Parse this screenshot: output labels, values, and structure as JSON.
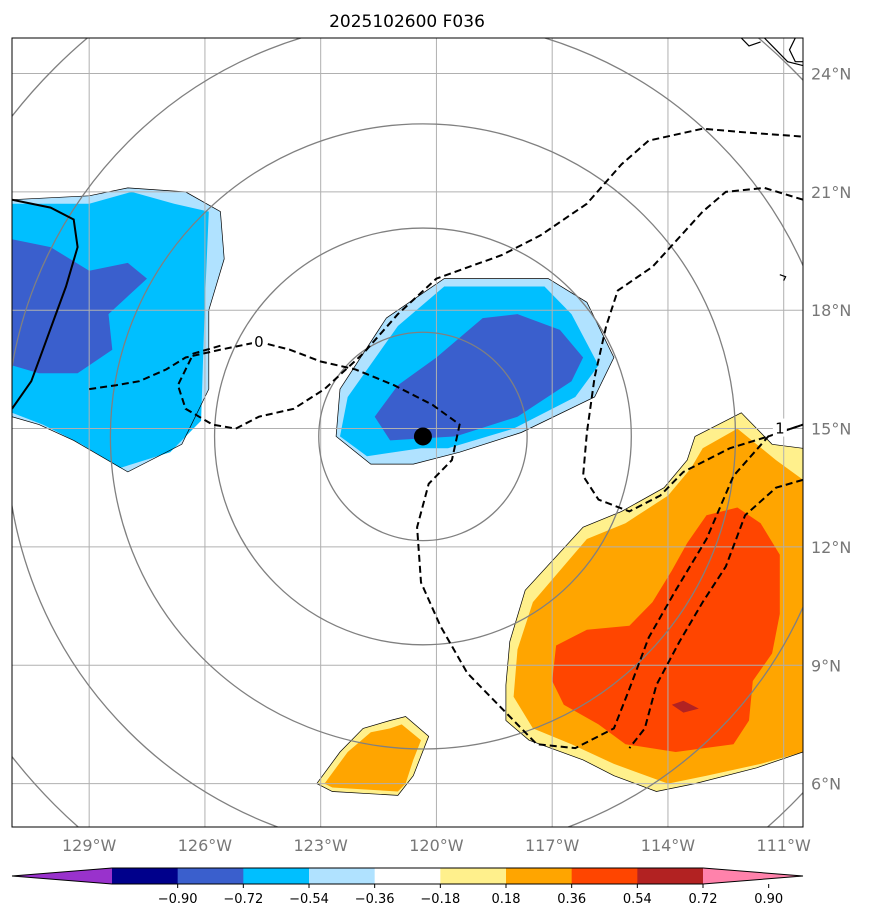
{
  "chart_data": {
    "type": "contour_map",
    "title": "2025102600 F036",
    "projection": "lat-lon",
    "xlim": [
      -131,
      -110.5
    ],
    "ylim": [
      4.9,
      24.9
    ],
    "grid": true,
    "lon_ticks": [
      {
        "value": -129,
        "label": "129°W"
      },
      {
        "value": -126,
        "label": "126°W"
      },
      {
        "value": -123,
        "label": "123°W"
      },
      {
        "value": -120,
        "label": "120°W"
      },
      {
        "value": -117,
        "label": "117°W"
      },
      {
        "value": -114,
        "label": "114°W"
      },
      {
        "value": -111,
        "label": "111°W"
      }
    ],
    "lat_ticks": [
      {
        "value": 6,
        "label": "6°N"
      },
      {
        "value": 9,
        "label": "9°N"
      },
      {
        "value": 12,
        "label": "12°N"
      },
      {
        "value": 15,
        "label": "15°N"
      },
      {
        "value": 18,
        "label": "18°N"
      },
      {
        "value": 21,
        "label": "21°N"
      },
      {
        "value": 24,
        "label": "24°N"
      }
    ],
    "center": {
      "lon": -120.35,
      "lat": 14.8
    },
    "range_rings_deg": [
      2.7,
      5.4,
      8.1,
      10.8,
      13.5
    ],
    "colorbar": {
      "orientation": "horizontal",
      "extend": "both",
      "levels": [
        -0.9,
        -0.72,
        -0.54,
        -0.36,
        -0.18,
        0.18,
        0.36,
        0.54,
        0.72,
        0.9
      ],
      "tick_labels": [
        "−0.90",
        "−0.72",
        "−0.54",
        "−0.36",
        "−0.18",
        "0.18",
        "0.36",
        "0.54",
        "0.72",
        "0.90"
      ],
      "colors": [
        "#9932cc",
        "#00008b",
        "#3a5fcd",
        "#00bfff",
        "#b0e2ff",
        "#ffffff",
        "#fff08c",
        "#ffa500",
        "#ff4500",
        "#b22222",
        "#ff82ab"
      ]
    },
    "contour_labels": [
      {
        "text": "0",
        "lon": -124.6,
        "lat": 17.2
      },
      {
        "text": "1",
        "lon": -111.1,
        "lat": 15.0
      }
    ],
    "filled_regions": [
      {
        "level": -0.18,
        "color": "#b0e2ff",
        "points": [
          [
            -131,
            20.8
          ],
          [
            -129,
            20.9
          ],
          [
            -128,
            21.1
          ],
          [
            -126.5,
            21.0
          ],
          [
            -125.6,
            20.5
          ],
          [
            -125.5,
            19.3
          ],
          [
            -125.9,
            18.0
          ],
          [
            -125.9,
            16.0
          ],
          [
            -126.6,
            14.6
          ],
          [
            -128.0,
            13.9
          ],
          [
            -129.4,
            14.7
          ],
          [
            -130.3,
            15.1
          ],
          [
            -131,
            15.3
          ]
        ]
      },
      {
        "level": -0.36,
        "color": "#00bfff",
        "points": [
          [
            -131,
            20.7
          ],
          [
            -129,
            20.7
          ],
          [
            -127.9,
            21.0
          ],
          [
            -126.8,
            20.7
          ],
          [
            -125.9,
            20.5
          ],
          [
            -126.0,
            18.2
          ],
          [
            -126.1,
            15.2
          ],
          [
            -126.9,
            14.4
          ],
          [
            -128.2,
            14.0
          ],
          [
            -129.2,
            14.6
          ],
          [
            -130.2,
            15.1
          ],
          [
            -131,
            15.4
          ]
        ]
      },
      {
        "level": -0.54,
        "color": "#3a5fcd",
        "points": [
          [
            -131,
            19.8
          ],
          [
            -130,
            19.6
          ],
          [
            -129,
            19.0
          ],
          [
            -128,
            19.2
          ],
          [
            -127.5,
            18.8
          ],
          [
            -128.5,
            17.9
          ],
          [
            -128.4,
            17.0
          ],
          [
            -129.3,
            16.4
          ],
          [
            -130.3,
            16.4
          ],
          [
            -131,
            16.6
          ]
        ]
      },
      {
        "level": -0.18,
        "color": "#b0e2ff",
        "points": [
          [
            -121.3,
            17.8
          ],
          [
            -119.8,
            18.8
          ],
          [
            -117.1,
            18.8
          ],
          [
            -116.1,
            18.2
          ],
          [
            -115.4,
            16.8
          ],
          [
            -115.9,
            15.8
          ],
          [
            -117.8,
            14.9
          ],
          [
            -119.4,
            14.4
          ],
          [
            -120.6,
            14.1
          ],
          [
            -121.7,
            14.1
          ],
          [
            -122.6,
            14.8
          ],
          [
            -122.5,
            16.0
          ]
        ]
      },
      {
        "level": -0.36,
        "color": "#00bfff",
        "points": [
          [
            -121.0,
            17.6
          ],
          [
            -119.8,
            18.6
          ],
          [
            -117.2,
            18.6
          ],
          [
            -116.5,
            17.9
          ],
          [
            -115.8,
            16.6
          ],
          [
            -116.4,
            15.8
          ],
          [
            -118.0,
            15.0
          ],
          [
            -119.7,
            14.5
          ],
          [
            -120.4,
            14.5
          ],
          [
            -121.8,
            14.3
          ],
          [
            -122.5,
            14.8
          ],
          [
            -122.3,
            15.8
          ]
        ]
      },
      {
        "level": -0.54,
        "color": "#3a5fcd",
        "points": [
          [
            -120.0,
            16.8
          ],
          [
            -118.8,
            17.8
          ],
          [
            -117.9,
            17.9
          ],
          [
            -116.8,
            17.5
          ],
          [
            -116.2,
            16.8
          ],
          [
            -116.5,
            16.2
          ],
          [
            -117.9,
            15.3
          ],
          [
            -119.5,
            14.8
          ],
          [
            -121.2,
            14.7
          ],
          [
            -121.6,
            15.3
          ],
          [
            -121.0,
            16.1
          ]
        ]
      },
      {
        "level": 0.18,
        "color": "#fff08c",
        "points": [
          [
            -113.3,
            14.8
          ],
          [
            -112.1,
            15.4
          ],
          [
            -111.3,
            14.6
          ],
          [
            -110.5,
            14.5
          ],
          [
            -110.5,
            6.8
          ],
          [
            -111.7,
            6.4
          ],
          [
            -113.3,
            6.0
          ],
          [
            -114.3,
            5.8
          ],
          [
            -115.4,
            6.2
          ],
          [
            -116.2,
            6.6
          ],
          [
            -117.6,
            7.1
          ],
          [
            -118.2,
            7.6
          ],
          [
            -118.2,
            8.5
          ],
          [
            -118.1,
            9.6
          ],
          [
            -117.7,
            10.9
          ],
          [
            -116.2,
            12.5
          ],
          [
            -115.2,
            12.9
          ],
          [
            -114.1,
            13.5
          ],
          [
            -113.5,
            14.2
          ]
        ]
      },
      {
        "level": 0.36,
        "color": "#ffa500",
        "points": [
          [
            -113.1,
            14.5
          ],
          [
            -112.2,
            15.0
          ],
          [
            -111.2,
            14.2
          ],
          [
            -110.5,
            13.7
          ],
          [
            -110.5,
            6.8
          ],
          [
            -111.6,
            6.5
          ],
          [
            -113.0,
            6.2
          ],
          [
            -114.0,
            6.0
          ],
          [
            -115.4,
            6.5
          ],
          [
            -116.5,
            7.0
          ],
          [
            -117.5,
            7.4
          ],
          [
            -118.0,
            8.2
          ],
          [
            -117.9,
            9.4
          ],
          [
            -117.5,
            10.6
          ],
          [
            -116.1,
            12.2
          ],
          [
            -115.1,
            12.6
          ],
          [
            -114.0,
            13.3
          ],
          [
            -113.4,
            14.0
          ]
        ]
      },
      {
        "level": 0.54,
        "color": "#ff4500",
        "points": [
          [
            -113.0,
            12.8
          ],
          [
            -112.2,
            13.0
          ],
          [
            -111.6,
            12.6
          ],
          [
            -111.1,
            11.8
          ],
          [
            -111.1,
            10.3
          ],
          [
            -111.3,
            9.3
          ],
          [
            -111.8,
            8.6
          ],
          [
            -111.9,
            7.6
          ],
          [
            -112.3,
            7.0
          ],
          [
            -113.8,
            6.8
          ],
          [
            -115.1,
            7.0
          ],
          [
            -115.8,
            7.5
          ],
          [
            -116.7,
            8.0
          ],
          [
            -117.0,
            8.6
          ],
          [
            -116.9,
            9.5
          ],
          [
            -116.1,
            9.9
          ],
          [
            -115.0,
            10.0
          ],
          [
            -114.4,
            10.6
          ],
          [
            -113.9,
            11.4
          ],
          [
            -113.5,
            12.1
          ]
        ]
      },
      {
        "level": 0.72,
        "color": "#b22222",
        "points": [
          [
            -113.9,
            8.0
          ],
          [
            -113.6,
            8.1
          ],
          [
            -113.2,
            7.9
          ],
          [
            -113.6,
            7.8
          ]
        ]
      },
      {
        "level": 0.18,
        "color": "#fff08c",
        "points": [
          [
            -123.1,
            6.0
          ],
          [
            -122.5,
            6.8
          ],
          [
            -121.9,
            7.4
          ],
          [
            -121.2,
            7.6
          ],
          [
            -120.8,
            7.7
          ],
          [
            -120.2,
            7.2
          ],
          [
            -120.4,
            6.7
          ],
          [
            -120.6,
            6.2
          ],
          [
            -121.0,
            5.7
          ],
          [
            -122.7,
            5.8
          ]
        ]
      },
      {
        "level": 0.36,
        "color": "#ffa500",
        "points": [
          [
            -122.9,
            6.0
          ],
          [
            -122.3,
            6.8
          ],
          [
            -121.7,
            7.3
          ],
          [
            -121.2,
            7.4
          ],
          [
            -120.9,
            7.5
          ],
          [
            -120.4,
            7.1
          ],
          [
            -120.6,
            6.6
          ],
          [
            -120.8,
            6.0
          ],
          [
            -121.0,
            5.8
          ],
          [
            -122.7,
            5.9
          ]
        ]
      }
    ],
    "contour_lines": [
      {
        "style": "solid",
        "points": [
          [
            -131,
            20.8
          ],
          [
            -130,
            20.6
          ],
          [
            -129.4,
            20.3
          ],
          [
            -129.3,
            19.6
          ],
          [
            -129.6,
            18.6
          ],
          [
            -129.9,
            17.8
          ],
          [
            -130.2,
            17.0
          ],
          [
            -130.5,
            16.2
          ],
          [
            -131,
            15.5
          ]
        ]
      },
      {
        "style": "dashed",
        "label": "0",
        "points": [
          [
            -129,
            16.0
          ],
          [
            -128.3,
            16.1
          ],
          [
            -127.7,
            16.2
          ],
          [
            -127.0,
            16.5
          ],
          [
            -126.5,
            16.8
          ],
          [
            -125.6,
            17.0
          ],
          [
            -124.6,
            17.2
          ],
          [
            -123.8,
            17.0
          ],
          [
            -123.0,
            16.7
          ],
          [
            -122.1,
            16.5
          ],
          [
            -121.1,
            16.1
          ],
          [
            -120.1,
            15.6
          ],
          [
            -119.4,
            15.1
          ],
          [
            -119.6,
            14.2
          ],
          [
            -120.2,
            13.6
          ],
          [
            -120.5,
            12.5
          ],
          [
            -120.4,
            11.1
          ],
          [
            -119.9,
            10.0
          ],
          [
            -119.2,
            8.8
          ],
          [
            -118.2,
            7.8
          ],
          [
            -117.4,
            7.0
          ],
          [
            -116.4,
            6.9
          ],
          [
            -115.4,
            7.4
          ],
          [
            -115.0,
            8.4
          ],
          [
            -114.5,
            9.7
          ],
          [
            -113.8,
            10.9
          ],
          [
            -113.0,
            12.2
          ],
          [
            -112.3,
            13.8
          ],
          [
            -111.4,
            14.8
          ],
          [
            -110.5,
            15.1
          ]
        ]
      },
      {
        "style": "dashed",
        "points": [
          [
            -125.6,
            17.1
          ],
          [
            -126.3,
            16.9
          ],
          [
            -126.7,
            16.1
          ],
          [
            -126.5,
            15.5
          ],
          [
            -125.8,
            15.1
          ],
          [
            -125.2,
            15.0
          ],
          [
            -124.6,
            15.3
          ],
          [
            -123.7,
            15.5
          ],
          [
            -122.9,
            16.0
          ],
          [
            -121.9,
            16.9
          ],
          [
            -121.0,
            17.9
          ],
          [
            -120.0,
            18.8
          ],
          [
            -118.3,
            19.4
          ],
          [
            -117.3,
            19.9
          ],
          [
            -116.1,
            20.7
          ],
          [
            -115.2,
            21.7
          ],
          [
            -114.5,
            22.3
          ],
          [
            -113.1,
            22.6
          ],
          [
            -111.9,
            22.5
          ],
          [
            -110.5,
            22.4
          ]
        ]
      },
      {
        "style": "dashed",
        "points": [
          [
            -110.5,
            20.8
          ],
          [
            -111.5,
            21.1
          ],
          [
            -112.5,
            21.0
          ],
          [
            -113.1,
            20.5
          ],
          [
            -114.4,
            19.1
          ],
          [
            -115.3,
            18.5
          ],
          [
            -115.6,
            17.6
          ],
          [
            -115.9,
            16.3
          ],
          [
            -116.1,
            14.9
          ],
          [
            -116.2,
            13.8
          ],
          [
            -115.8,
            13.2
          ],
          [
            -115.0,
            12.9
          ],
          [
            -114.2,
            13.3
          ],
          [
            -113.6,
            13.9
          ],
          [
            -112.4,
            14.5
          ],
          [
            -111.4,
            14.8
          ],
          [
            -110.5,
            15.1
          ]
        ]
      },
      {
        "style": "dashed",
        "points": [
          [
            -110.5,
            13.7
          ],
          [
            -111.2,
            13.5
          ],
          [
            -112.0,
            12.8
          ],
          [
            -112.5,
            11.5
          ],
          [
            -113.1,
            10.6
          ],
          [
            -113.7,
            9.6
          ],
          [
            -114.3,
            8.5
          ],
          [
            -114.6,
            7.4
          ],
          [
            -115.0,
            6.9
          ]
        ]
      }
    ],
    "coastlines": [
      [
        [
          -111.5,
          24.9
        ],
        [
          -111.2,
          24.6
        ],
        [
          -110.9,
          24.3
        ],
        [
          -110.5,
          24.2
        ]
      ],
      [
        [
          -110.7,
          24.9
        ],
        [
          -110.85,
          24.6
        ],
        [
          -110.7,
          24.3
        ],
        [
          -110.5,
          24.3
        ]
      ],
      [
        [
          -112.1,
          24.9
        ],
        [
          -111.9,
          24.7
        ],
        [
          -111.6,
          24.8
        ]
      ],
      [
        [
          -111.1,
          18.9
        ],
        [
          -110.95,
          18.85
        ],
        [
          -111.0,
          18.75
        ]
      ]
    ]
  }
}
